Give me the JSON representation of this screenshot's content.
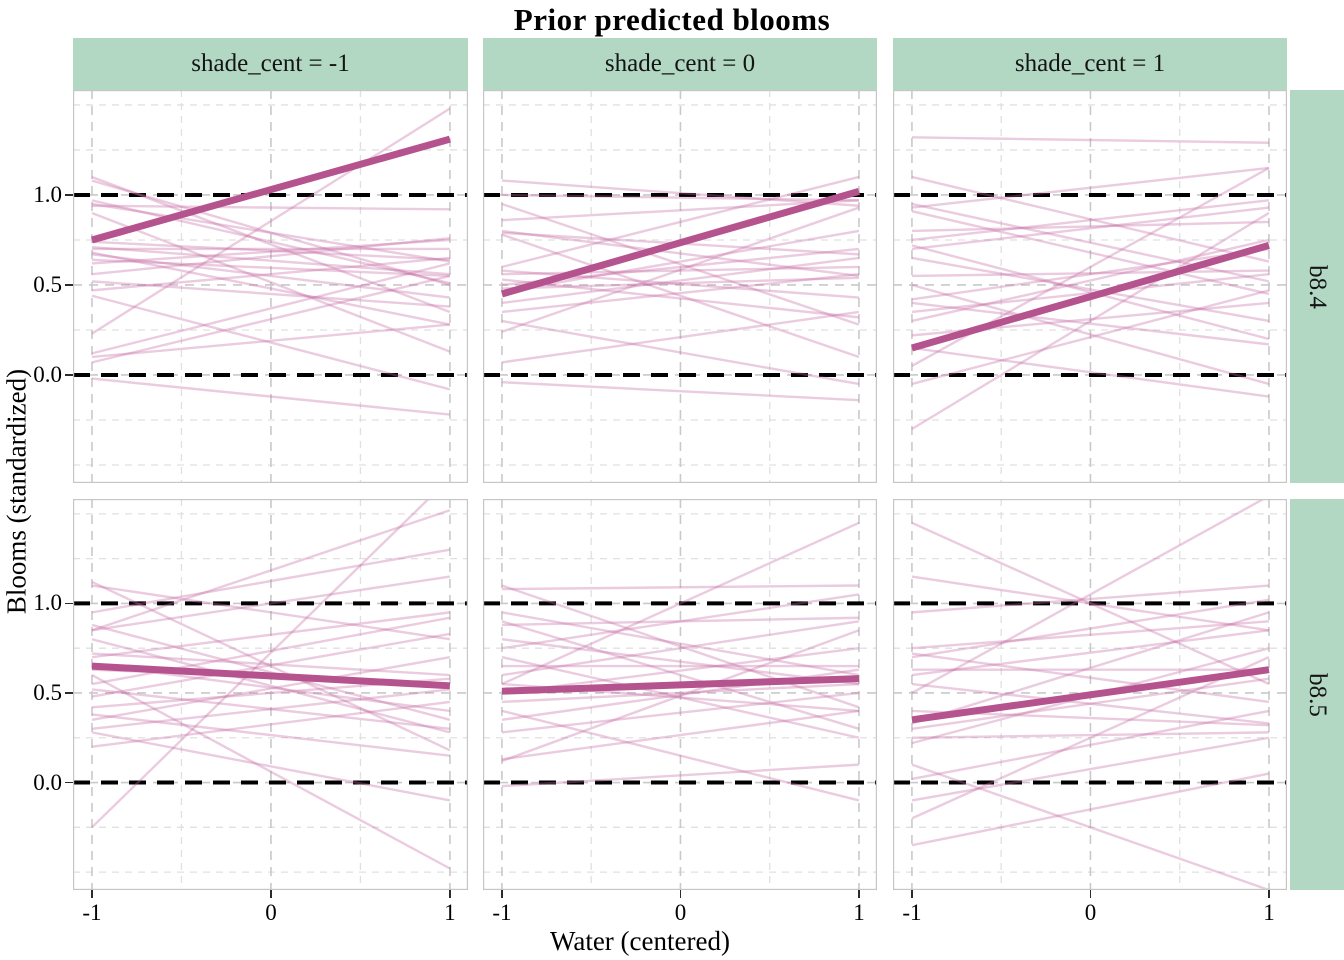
{
  "title": "Prior predicted blooms",
  "colors": {
    "strip_fill": "#b2d8c4",
    "strip_text": "#141414",
    "prior_line": "#c76aa2",
    "prior_line_opacity": 0.35,
    "mean_line": "#b4538e",
    "reference_line": "#000000",
    "grid_major": "#c9c9c9",
    "grid_minor": "#e0e0e0",
    "panel_border": "#c6c6c6",
    "tick_mark": "#2b2b2b"
  },
  "chart_data": {
    "type": "line",
    "title": "Prior predicted blooms",
    "xlabel": "Water (centered)",
    "ylabel": "Blooms (standardized)",
    "legend": "none",
    "grid": "dashed",
    "facet_cols": [
      "shade_cent = -1",
      "shade_cent = 0",
      "shade_cent = 1"
    ],
    "facet_rows": [
      "b8.4",
      "b8.5"
    ],
    "x_ticks": {
      "values": [
        -1,
        0,
        1
      ],
      "labels": [
        "-1",
        "0",
        "1"
      ]
    },
    "y_ticks": {
      "values": [
        1.0,
        0.5,
        0.0
      ],
      "labels": [
        "1.0",
        "0.5",
        "0.0"
      ]
    },
    "x_minor": [
      -0.5,
      0.5
    ],
    "y_minor": [
      1.5,
      1.25,
      0.75,
      0.25,
      -0.25,
      -0.5
    ],
    "x_domain": [
      -1.106,
      1.101
    ],
    "y_domain": [
      -0.6,
      1.583
    ],
    "reference_lines_y": [
      0.0,
      1.0
    ],
    "panels": [
      {
        "row": "b8.4",
        "col": "shade_cent = -1",
        "mean_line": {
          "x": [
            -1,
            1
          ],
          "y": [
            0.75,
            1.31
          ]
        },
        "prior_lines": [
          [
            1.1,
            0.35
          ],
          [
            1.08,
            0.5
          ],
          [
            0.97,
            0.51
          ],
          [
            0.95,
            0.63
          ],
          [
            0.94,
            0.92
          ],
          [
            0.9,
            0.13
          ],
          [
            0.74,
            0.64
          ],
          [
            0.71,
            0.56
          ],
          [
            0.7,
            0.7
          ],
          [
            0.68,
            0.28
          ],
          [
            0.67,
            0.43
          ],
          [
            0.64,
            0.55
          ],
          [
            0.62,
            0.75
          ],
          [
            0.56,
            0.76
          ],
          [
            0.47,
            0.65
          ],
          [
            0.44,
            -0.08
          ],
          [
            0.23,
            1.48
          ],
          [
            0.12,
            0.62
          ],
          [
            0.1,
            0.28
          ],
          [
            0.07,
            0.55
          ],
          [
            -0.02,
            -0.22
          ],
          [
            0.52,
            0.38
          ]
        ]
      },
      {
        "row": "b8.4",
        "col": "shade_cent = 0",
        "mean_line": {
          "x": [
            -1,
            1
          ],
          "y": [
            0.45,
            1.02
          ]
        },
        "prior_lines": [
          [
            1.08,
            0.94
          ],
          [
            1.0,
            0.97
          ],
          [
            0.95,
            0.28
          ],
          [
            0.86,
            0.97
          ],
          [
            0.8,
            0.55
          ],
          [
            0.79,
            0.67
          ],
          [
            0.78,
            0.1
          ],
          [
            0.6,
            1.1
          ],
          [
            0.58,
            0.43
          ],
          [
            0.56,
            0.6
          ],
          [
            0.53,
            0.32
          ],
          [
            0.5,
            0.7
          ],
          [
            0.48,
            0.54
          ],
          [
            0.46,
            0.8
          ],
          [
            0.4,
            0.65
          ],
          [
            0.35,
            0.56
          ],
          [
            0.24,
            0.93
          ],
          [
            0.07,
            0.35
          ],
          [
            -0.04,
            -0.14
          ],
          [
            0.3,
            -0.05
          ]
        ]
      },
      {
        "row": "b8.4",
        "col": "shade_cent = 1",
        "mean_line": {
          "x": [
            -1,
            1
          ],
          "y": [
            0.15,
            0.72
          ]
        },
        "prior_lines": [
          [
            1.32,
            1.29
          ],
          [
            1.1,
            0.63
          ],
          [
            0.95,
            0.52
          ],
          [
            0.93,
            1.15
          ],
          [
            0.91,
            0.45
          ],
          [
            0.8,
            0.85
          ],
          [
            0.75,
            0.97
          ],
          [
            0.72,
            0.2
          ],
          [
            0.7,
            0.93
          ],
          [
            0.65,
            0.3
          ],
          [
            0.55,
            0.58
          ],
          [
            0.5,
            -0.05
          ],
          [
            0.42,
            0.7
          ],
          [
            0.4,
            0.17
          ],
          [
            0.35,
            0.56
          ],
          [
            0.3,
            0.75
          ],
          [
            0.22,
            0.4
          ],
          [
            0.15,
            -0.12
          ],
          [
            -0.05,
            0.47
          ],
          [
            -0.3,
            0.9
          ],
          [
            0.05,
            1.15
          ]
        ]
      },
      {
        "row": "b8.5",
        "col": "shade_cent = -1",
        "mean_line": {
          "x": [
            -1,
            1
          ],
          "y": [
            0.65,
            0.54
          ]
        },
        "prior_lines": [
          [
            1.12,
            0.18
          ],
          [
            1.1,
            0.8
          ],
          [
            0.88,
            0.35
          ],
          [
            0.85,
            1.15
          ],
          [
            0.8,
            0.28
          ],
          [
            0.72,
            0.6
          ],
          [
            0.7,
            0.95
          ],
          [
            0.66,
            0.4
          ],
          [
            0.63,
            0.55
          ],
          [
            0.6,
            -0.48
          ],
          [
            0.55,
            0.92
          ],
          [
            0.52,
            0.3
          ],
          [
            0.48,
            0.83
          ],
          [
            0.42,
            0.58
          ],
          [
            0.38,
            0.15
          ],
          [
            0.35,
            0.7
          ],
          [
            0.3,
            0.52
          ],
          [
            0.28,
            -0.1
          ],
          [
            0.2,
            0.45
          ],
          [
            -0.25,
            1.7
          ],
          [
            0.85,
            1.52
          ],
          [
            0.95,
            1.3
          ]
        ]
      },
      {
        "row": "b8.5",
        "col": "shade_cent = 0",
        "mean_line": {
          "x": [
            -1,
            1
          ],
          "y": [
            0.51,
            0.58
          ]
        },
        "prior_lines": [
          [
            1.08,
            1.1
          ],
          [
            0.95,
            0.6
          ],
          [
            0.9,
            0.3
          ],
          [
            0.88,
            0.92
          ],
          [
            0.8,
            0.55
          ],
          [
            0.75,
            1.05
          ],
          [
            0.7,
            0.25
          ],
          [
            0.65,
            0.65
          ],
          [
            0.6,
            0.9
          ],
          [
            0.55,
            0.4
          ],
          [
            0.5,
            0.75
          ],
          [
            0.45,
            0.55
          ],
          [
            0.4,
            -0.1
          ],
          [
            0.35,
            0.63
          ],
          [
            0.28,
            0.5
          ],
          [
            0.13,
            0.4
          ],
          [
            0.12,
            0.85
          ],
          [
            -0.02,
            0.1
          ],
          [
            0.55,
            1.45
          ],
          [
            1.1,
            0.42
          ]
        ]
      },
      {
        "row": "b8.5",
        "col": "shade_cent = 1",
        "mean_line": {
          "x": [
            -1,
            1
          ],
          "y": [
            0.35,
            0.63
          ]
        },
        "prior_lines": [
          [
            1.45,
            0.55
          ],
          [
            1.15,
            0.85
          ],
          [
            0.95,
            1.1
          ],
          [
            0.75,
            0.9
          ],
          [
            0.72,
            0.45
          ],
          [
            0.7,
            1.02
          ],
          [
            0.63,
            0.63
          ],
          [
            0.6,
            0.85
          ],
          [
            0.55,
            0.33
          ],
          [
            0.5,
            1.6
          ],
          [
            0.4,
            0.32
          ],
          [
            0.33,
            0.95
          ],
          [
            0.3,
            0.58
          ],
          [
            0.25,
            0.28
          ],
          [
            0.22,
            0.75
          ],
          [
            0.1,
            -0.6
          ],
          [
            0.02,
            0.4
          ],
          [
            -0.1,
            0.25
          ],
          [
            -0.2,
            0.7
          ],
          [
            -0.35,
            0.05
          ]
        ]
      }
    ]
  }
}
